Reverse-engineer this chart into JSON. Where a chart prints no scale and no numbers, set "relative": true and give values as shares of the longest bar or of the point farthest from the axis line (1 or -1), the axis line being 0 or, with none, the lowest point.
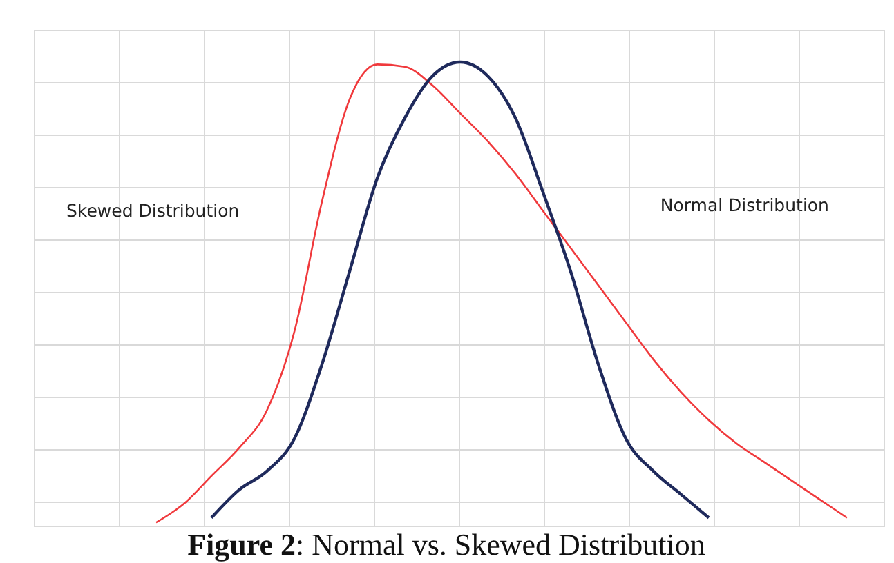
{
  "chart_data": {
    "type": "line",
    "title": "Figure 2: Normal vs. Skewed Distribution",
    "relative": true,
    "grid": true,
    "marker": "none",
    "line_style": "solid",
    "annotations": [
      "Skewed Distribution",
      "Normal Distribution"
    ],
    "categories": [
      null,
      null,
      null,
      null,
      null,
      null,
      null,
      null,
      null,
      null,
      null,
      null,
      null,
      null,
      null,
      null,
      null,
      null,
      null,
      null,
      null,
      null,
      null,
      null,
      null,
      null,
      null
    ],
    "series": [
      {
        "color": "#f0393c",
        "values": [
          null,
          0.01,
          0.05,
          0.11,
          0.17,
          0.25,
          0.42,
          0.7,
          0.92,
          0.995,
          0.99,
          0.95,
          0.89,
          0.83,
          0.76,
          0.68,
          0.6,
          0.52,
          0.44,
          0.36,
          0.29,
          0.23,
          0.18,
          0.14,
          0.1,
          0.06,
          0.02
        ]
      },
      {
        "color": "#1f2a5c",
        "values": [
          null,
          null,
          null,
          0.02,
          0.08,
          0.12,
          0.19,
          0.35,
          0.55,
          0.75,
          0.88,
          0.97,
          1,
          0.97,
          0.88,
          0.72,
          0.55,
          0.35,
          0.19,
          0.12,
          0.07,
          0.02,
          null,
          null,
          null,
          null,
          null
        ]
      }
    ]
  }
}
